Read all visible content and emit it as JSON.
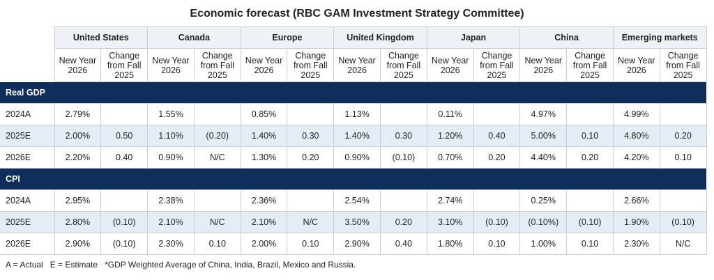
{
  "header": {
    "title": "Economic forecast (RBC GAM Investment Strategy Committee)"
  },
  "table": {
    "countries": [
      "United States",
      "Canada",
      "Europe",
      "United Kingdom",
      "Japan",
      "China",
      "Emerging markets"
    ],
    "subheaders": [
      "New Year 2026",
      "Change from Fall 2025"
    ],
    "sections": [
      {
        "name": "Real GDP",
        "rows": [
          {
            "label": "2024A",
            "cells": [
              "2.79%",
              null,
              "1.55%",
              null,
              "0.85%",
              null,
              "1.13%",
              null,
              "0.11%",
              null,
              "4.97%",
              null,
              "4.99%",
              null
            ]
          },
          {
            "label": "2025E",
            "cells": [
              "2.00%",
              "0.50",
              "1.10%",
              "(0.20)",
              "1.40%",
              "0.30",
              "1.40%",
              "0.30",
              "1.20%",
              "0.40",
              "5.00%",
              "0.10",
              "4.80%",
              "0.20"
            ]
          },
          {
            "label": "2026E",
            "cells": [
              "2.20%",
              "0.40",
              "0.90%",
              "N/C",
              "1.30%",
              "0.20",
              "0.90%",
              "(0.10)",
              "0.70%",
              "0.20",
              "4.40%",
              "0.20",
              "4.20%",
              "0.10"
            ]
          }
        ]
      },
      {
        "name": "CPI",
        "rows": [
          {
            "label": "2024A",
            "cells": [
              "2.95%",
              null,
              "2.38%",
              null,
              "2.36%",
              null,
              "2.54%",
              null,
              "2.74%",
              null,
              "0.25%",
              null,
              "2.66%",
              null
            ]
          },
          {
            "label": "2025E",
            "cells": [
              "2.80%",
              "(0.10)",
              "2.10%",
              "N/C",
              "2.10%",
              "N/C",
              "3.50%",
              "0.20",
              "3.10%",
              "(0.10)",
              "(0.10%)",
              "(0.10)",
              "1.90%",
              "(0.10)"
            ]
          },
          {
            "label": "2026E",
            "cells": [
              "2.90%",
              "(0.10)",
              "2.30%",
              "0.10",
              "2.00%",
              "0.10",
              "2.90%",
              "0.40",
              "1.80%",
              "0.10",
              "1.00%",
              "0.10",
              "2.30%",
              "N/C"
            ]
          }
        ]
      }
    ]
  },
  "notes": [
    "A = Actual",
    "E = Estimate",
    "*GDP Weighted Average of China, India, Brazil, Mexico and Russia."
  ]
}
